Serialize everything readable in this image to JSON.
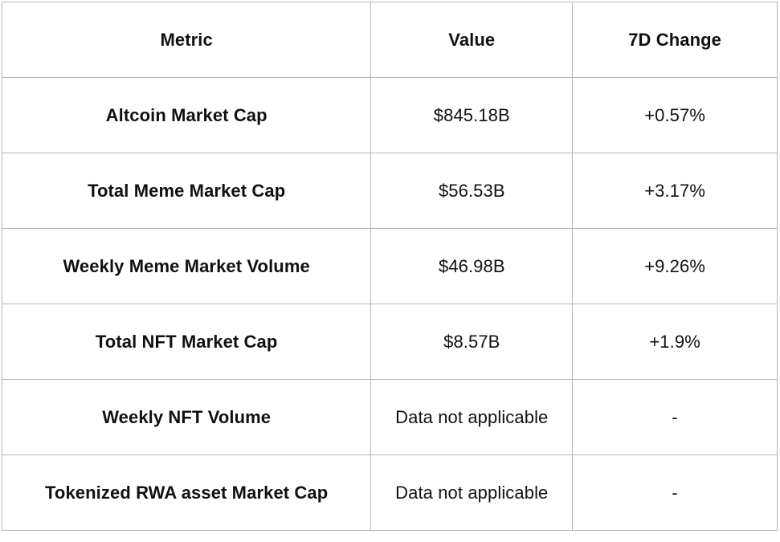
{
  "table": {
    "columns": [
      {
        "label": "Metric"
      },
      {
        "label": "Value"
      },
      {
        "label": "7D Change"
      }
    ],
    "rows": [
      {
        "metric": "Altcoin Market Cap",
        "value": "$845.18B",
        "change": "+0.57%"
      },
      {
        "metric": "Total Meme Market Cap",
        "value": "$56.53B",
        "change": "+3.17%"
      },
      {
        "metric": "Weekly Meme Market Volume",
        "value": "$46.98B",
        "change": "+9.26%"
      },
      {
        "metric": "Total NFT Market Cap",
        "value": "$8.57B",
        "change": "+1.9%"
      },
      {
        "metric": "Weekly NFT Volume",
        "value": "Data not applicable",
        "change": "-"
      },
      {
        "metric": "Tokenized RWA asset Market Cap",
        "value": "Data not applicable",
        "change": "-"
      }
    ],
    "colors": {
      "border": "#b5b5b5",
      "text": "#111111",
      "background": "#ffffff"
    }
  }
}
